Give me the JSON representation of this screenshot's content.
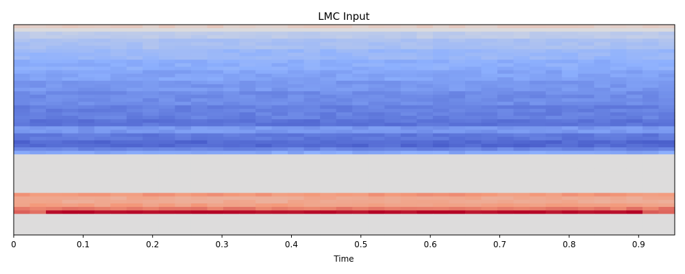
{
  "chart_data": {
    "type": "heatmap",
    "title": "LMC Input",
    "xlabel": "Time",
    "ylabel": "",
    "xlim": [
      0,
      0.952
    ],
    "x_ticks": [
      0,
      0.1,
      0.2,
      0.3,
      0.4,
      0.5,
      0.6,
      0.7,
      0.8,
      0.9
    ],
    "x_tick_labels": [
      "0",
      "0.1",
      "0.2",
      "0.3",
      "0.4",
      "0.5",
      "0.6",
      "0.7",
      "0.8",
      "0.9"
    ],
    "y_ticks": [],
    "grid": false,
    "legend": "none",
    "colormap": "coolwarm",
    "value_range": [
      -1,
      1
    ],
    "n_columns": 41,
    "n_rows": 60,
    "column_jitter": 0.05,
    "column_jitter_seed": 7,
    "row_profile": [
      {
        "rows": [
          0,
          0
        ],
        "value": 0.12,
        "dark_columns": [],
        "dark_value": 0.12,
        "edge_columns": [],
        "edge_value": 0.12
      },
      {
        "rows": [
          1,
          1
        ],
        "value": -0.02,
        "dark_columns": [],
        "dark_value": -0.02,
        "edge_columns": [],
        "edge_value": -0.02
      },
      {
        "rows": [
          2,
          3
        ],
        "value": -0.2,
        "dark_columns": [],
        "dark_value": -0.2,
        "edge_columns": [],
        "edge_value": -0.2
      },
      {
        "rows": [
          4,
          6
        ],
        "value": -0.32,
        "dark_columns": [],
        "dark_value": -0.32,
        "edge_columns": [],
        "edge_value": -0.32
      },
      {
        "rows": [
          7,
          9
        ],
        "value": -0.42,
        "dark_columns": [],
        "dark_value": -0.42,
        "edge_columns": [],
        "edge_value": -0.42
      },
      {
        "rows": [
          10,
          12
        ],
        "value": -0.5,
        "dark_columns": [],
        "dark_value": -0.5,
        "edge_columns": [],
        "edge_value": -0.5
      },
      {
        "rows": [
          13,
          15
        ],
        "value": -0.56,
        "dark_columns": [],
        "dark_value": -0.56,
        "edge_columns": [],
        "edge_value": -0.56
      },
      {
        "rows": [
          16,
          18
        ],
        "value": -0.62,
        "dark_columns": [],
        "dark_value": -0.62,
        "edge_columns": [],
        "edge_value": -0.62
      },
      {
        "rows": [
          19,
          22
        ],
        "value": -0.68,
        "dark_columns": [],
        "dark_value": -0.68,
        "edge_columns": [],
        "edge_value": -0.68
      },
      {
        "rows": [
          23,
          26
        ],
        "value": -0.74,
        "dark_columns": [],
        "dark_value": -0.74,
        "edge_columns": [],
        "edge_value": -0.74
      },
      {
        "rows": [
          27,
          28
        ],
        "value": -0.8,
        "dark_columns": [],
        "dark_value": -0.8,
        "edge_columns": [],
        "edge_value": -0.8
      },
      {
        "rows": [
          29,
          30
        ],
        "value": -0.62,
        "dark_columns": [],
        "dark_value": -0.62,
        "edge_columns": [],
        "edge_value": -0.62
      },
      {
        "rows": [
          31,
          32
        ],
        "value": -0.78,
        "dark_columns": [],
        "dark_value": -0.78,
        "edge_columns": [],
        "edge_value": -0.78
      },
      {
        "rows": [
          33,
          34
        ],
        "value": -0.86,
        "dark_columns": [],
        "dark_value": -0.86,
        "edge_columns": [],
        "edge_value": -0.86
      },
      {
        "rows": [
          35,
          35
        ],
        "value": -0.72,
        "dark_columns": [],
        "dark_value": -0.72,
        "edge_columns": [],
        "edge_value": -0.72
      },
      {
        "rows": [
          36,
          36
        ],
        "value": -0.55,
        "dark_columns": [],
        "dark_value": -0.55,
        "edge_columns": [],
        "edge_value": -0.55
      },
      {
        "rows": [
          37,
          47
        ],
        "value": 0.0,
        "dark_columns": [],
        "dark_value": 0.0,
        "edge_columns": [],
        "edge_value": 0.0
      },
      {
        "rows": [
          48,
          48
        ],
        "value": 0.5,
        "dark_columns": [],
        "dark_value": 0.5,
        "edge_columns": [],
        "edge_value": 0.5
      },
      {
        "rows": [
          49,
          50
        ],
        "value": 0.38,
        "dark_columns": [],
        "dark_value": 0.38,
        "edge_columns": [],
        "edge_value": 0.38
      },
      {
        "rows": [
          51,
          51
        ],
        "value": 0.46,
        "dark_columns": [],
        "dark_value": 0.46,
        "edge_columns": [],
        "edge_value": 0.46
      },
      {
        "rows": [
          52,
          52
        ],
        "value": 0.6,
        "dark_columns": [],
        "dark_value": 0.6,
        "edge_columns": [],
        "edge_value": 0.6
      },
      {
        "rows": [
          53,
          53
        ],
        "value": 0.66,
        "dark_columns": [
          2,
          3,
          4,
          5,
          6,
          7,
          8,
          9,
          10,
          11,
          12,
          13,
          14,
          15,
          16,
          17,
          18,
          19,
          20,
          21,
          22,
          23,
          24,
          25,
          26,
          27,
          28,
          29,
          30,
          31,
          32,
          33,
          34,
          35,
          36,
          37,
          38
        ],
        "dark_value": 0.97,
        "edge_columns": [
          0,
          1,
          39,
          40
        ],
        "edge_value": 0.66
      },
      {
        "rows": [
          54,
          59
        ],
        "value": 0.0,
        "dark_columns": [],
        "dark_value": 0.0,
        "edge_columns": [],
        "edge_value": 0.0
      }
    ]
  }
}
